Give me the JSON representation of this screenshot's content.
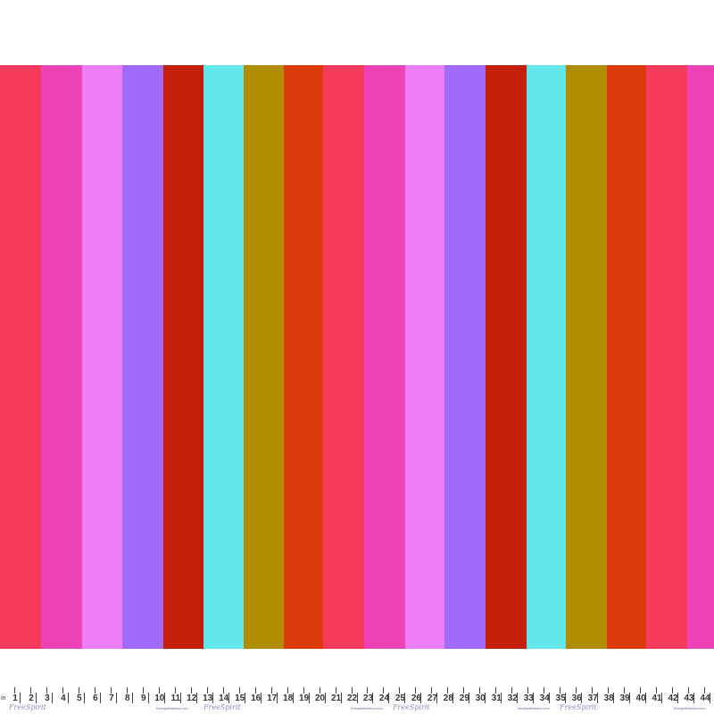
{
  "fabric": {
    "stripe_colors": [
      "#F53A5B",
      "#EE43B6",
      "#EE7EF6",
      "#A06AFA",
      "#C41F08",
      "#63E6EA",
      "#B08D00",
      "#DB3B0A"
    ],
    "stripe_count": 18
  },
  "ruler": {
    "unit": "in",
    "numbers": [
      "1",
      "2",
      "3",
      "4",
      "5",
      "6",
      "7",
      "8",
      "9",
      "10",
      "11",
      "12",
      "13",
      "14",
      "15",
      "16",
      "17",
      "18",
      "19",
      "20",
      "21",
      "22",
      "23",
      "24",
      "25",
      "26",
      "27",
      "28",
      "29",
      "30",
      "31",
      "32",
      "33",
      "34",
      "35",
      "36",
      "37",
      "38",
      "39",
      "40",
      "41",
      "42",
      "43",
      "44"
    ],
    "site": "freespiritfabrics.com",
    "logo": "FreeSpirit"
  }
}
